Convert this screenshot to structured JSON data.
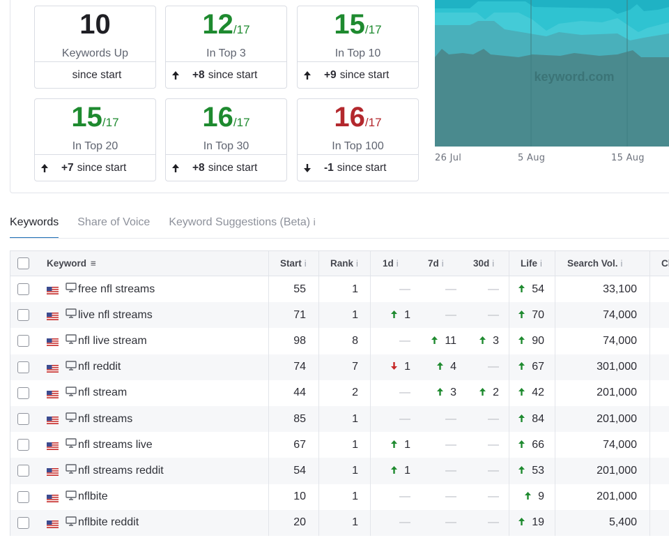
{
  "summary": {
    "cards": [
      {
        "value": "10",
        "total": "",
        "label": "Keywords Up",
        "change": "",
        "footer": "since start",
        "color": "dark",
        "arrow": "none"
      },
      {
        "value": "12",
        "total": "/17",
        "label": "In Top 3",
        "change": "+8",
        "footer": "since start",
        "color": "green",
        "arrow": "up"
      },
      {
        "value": "15",
        "total": "/17",
        "label": "In Top 10",
        "change": "+9",
        "footer": "since start",
        "color": "green",
        "arrow": "up"
      },
      {
        "value": "15",
        "total": "/17",
        "label": "In Top 20",
        "change": "+7",
        "footer": "since start",
        "color": "green",
        "arrow": "up"
      },
      {
        "value": "16",
        "total": "/17",
        "label": "In Top 30",
        "change": "+8",
        "footer": "since start",
        "color": "green",
        "arrow": "up"
      },
      {
        "value": "16",
        "total": "/17",
        "label": "In Top 100",
        "change": "-1",
        "footer": "since start",
        "color": "red",
        "arrow": "down"
      }
    ]
  },
  "chart": {
    "watermark": "keyword.com",
    "x_labels": [
      "26 Jul",
      "5 Aug",
      "15 Aug"
    ],
    "colors": [
      "#1ea5b8",
      "#2fbccb",
      "#46cfdb",
      "#4e8c8f"
    ]
  },
  "tabs": [
    {
      "label": "Keywords",
      "active": true
    },
    {
      "label": "Share of Voice",
      "active": false
    },
    {
      "label": "Keyword Suggestions (Beta)",
      "active": false,
      "info": "i"
    }
  ],
  "table": {
    "headers": {
      "keyword": "Keyword",
      "start": "Start",
      "rank": "Rank",
      "d1": "1d",
      "d7": "7d",
      "d30": "30d",
      "life": "Life",
      "vol": "Search Vol.",
      "cl": "Cl",
      "info": "i",
      "sort": "≡"
    },
    "rows": [
      {
        "keyword": "free nfl streams",
        "start": "55",
        "rank": "1",
        "d1": "",
        "d1_dir": "none",
        "d7": "",
        "d7_dir": "none",
        "d30": "",
        "d30_dir": "none",
        "life": "54",
        "vol": "33,100"
      },
      {
        "keyword": "live nfl streams",
        "start": "71",
        "rank": "1",
        "d1": "1",
        "d1_dir": "up",
        "d7": "",
        "d7_dir": "none",
        "d30": "",
        "d30_dir": "none",
        "life": "70",
        "vol": "74,000"
      },
      {
        "keyword": "nfl live stream",
        "start": "98",
        "rank": "8",
        "d1": "",
        "d1_dir": "none",
        "d7": "11",
        "d7_dir": "up",
        "d30": "3",
        "d30_dir": "up",
        "life": "90",
        "vol": "74,000"
      },
      {
        "keyword": "nfl reddit",
        "start": "74",
        "rank": "7",
        "d1": "1",
        "d1_dir": "down",
        "d7": "4",
        "d7_dir": "up",
        "d30": "",
        "d30_dir": "none",
        "life": "67",
        "vol": "301,000"
      },
      {
        "keyword": "nfl stream",
        "start": "44",
        "rank": "2",
        "d1": "",
        "d1_dir": "none",
        "d7": "3",
        "d7_dir": "up",
        "d30": "2",
        "d30_dir": "up",
        "life": "42",
        "vol": "201,000"
      },
      {
        "keyword": "nfl streams",
        "start": "85",
        "rank": "1",
        "d1": "",
        "d1_dir": "none",
        "d7": "",
        "d7_dir": "none",
        "d30": "",
        "d30_dir": "none",
        "life": "84",
        "vol": "201,000"
      },
      {
        "keyword": "nfl streams live",
        "start": "67",
        "rank": "1",
        "d1": "1",
        "d1_dir": "up",
        "d7": "",
        "d7_dir": "none",
        "d30": "",
        "d30_dir": "none",
        "life": "66",
        "vol": "74,000"
      },
      {
        "keyword": "nfl streams reddit",
        "start": "54",
        "rank": "1",
        "d1": "1",
        "d1_dir": "up",
        "d7": "",
        "d7_dir": "none",
        "d30": "",
        "d30_dir": "none",
        "life": "53",
        "vol": "201,000"
      },
      {
        "keyword": "nflbite",
        "start": "10",
        "rank": "1",
        "d1": "",
        "d1_dir": "none",
        "d7": "",
        "d7_dir": "none",
        "d30": "",
        "d30_dir": "none",
        "life": "9",
        "vol": "201,000"
      },
      {
        "keyword": "nflbite reddit",
        "start": "20",
        "rank": "1",
        "d1": "",
        "d1_dir": "none",
        "d7": "",
        "d7_dir": "none",
        "d30": "",
        "d30_dir": "none",
        "life": "19",
        "vol": "5,400"
      }
    ]
  },
  "icons": {
    "up_arrow": "arrow-up-icon",
    "down_arrow": "arrow-down-icon",
    "flag": "us-flag-icon",
    "device": "desktop-monitor-icon",
    "sort": "sort-icon"
  }
}
